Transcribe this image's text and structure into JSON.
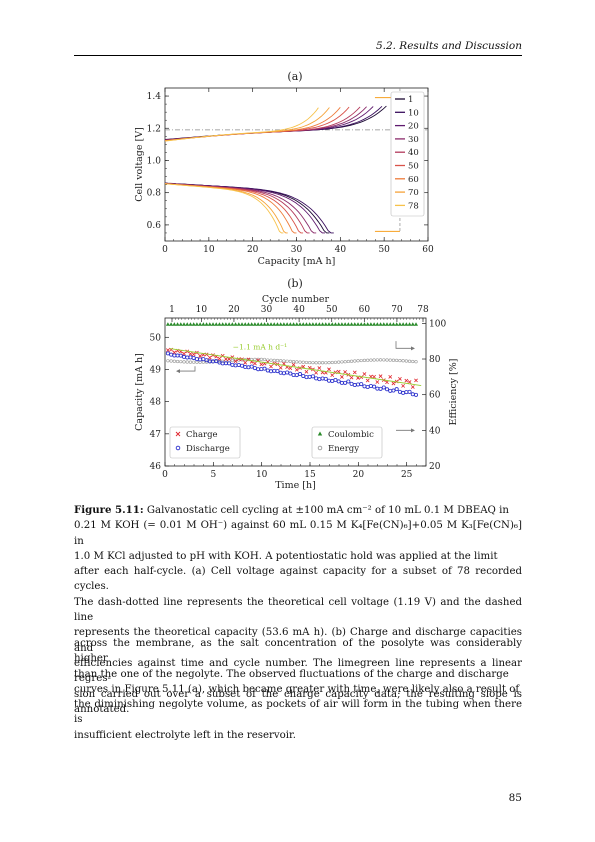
{
  "header": {
    "section": "5.2.  Results and Discussion"
  },
  "figure_a": {
    "panel_label": "(a)",
    "chart_data": {
      "type": "line",
      "xlabel": "Capacity [mA h]",
      "ylabel": "Cell voltage [V]",
      "xlim": [
        0,
        60
      ],
      "ylim": [
        0.5,
        1.45
      ],
      "x_ticks": [
        "0",
        "10",
        "20",
        "30",
        "40",
        "50",
        "60"
      ],
      "y_ticks": [
        "0.6",
        "0.8",
        "1.0",
        "1.2",
        "1.4"
      ],
      "theoretical_voltage": 1.19,
      "theoretical_capacity": 53.6,
      "legend_position": "top-right",
      "series": [
        {
          "name": "1",
          "color": "#1b0933",
          "charge_end": 50.5,
          "discharge_end": 37.5
        },
        {
          "name": "10",
          "color": "#3a0f5e",
          "charge_end": 49.5,
          "discharge_end": 38.5
        },
        {
          "name": "20",
          "color": "#5f1a6e",
          "charge_end": 47.5,
          "discharge_end": 36.5
        },
        {
          "name": "30",
          "color": "#8a2a6a",
          "charge_end": 46.0,
          "discharge_end": 34.5
        },
        {
          "name": "40",
          "color": "#b33a5c",
          "charge_end": 44.5,
          "discharge_end": 33.0
        },
        {
          "name": "50",
          "color": "#d9534a",
          "charge_end": 42.0,
          "discharge_end": 31.5
        },
        {
          "name": "60",
          "color": "#ee7b3a",
          "charge_end": 40.0,
          "discharge_end": 30.0
        },
        {
          "name": "70",
          "color": "#f6a33a",
          "charge_end": 37.5,
          "discharge_end": 28.0
        },
        {
          "name": "78",
          "color": "#f7c24a",
          "charge_end": 35.0,
          "discharge_end": 27.0
        }
      ]
    }
  },
  "figure_b": {
    "panel_label": "(b)",
    "chart_data": {
      "type": "scatter",
      "xlabel": "Time [h]",
      "ylabel": "Capacity [mA h]",
      "ylabel_right": "Efficiency [%]",
      "xlabel_top": "Cycle number",
      "xlim": [
        0,
        27
      ],
      "ylim": [
        46,
        50.6
      ],
      "ylim_right": [
        20,
        103
      ],
      "x_ticks": [
        "0",
        "5",
        "10",
        "15",
        "20",
        "25"
      ],
      "y_ticks": [
        "46",
        "47",
        "48",
        "49",
        "50"
      ],
      "y_ticks_right": [
        "20",
        "40",
        "60",
        "80",
        "100"
      ],
      "top_ticks": [
        "1",
        "10",
        "20",
        "30",
        "40",
        "50",
        "60",
        "70",
        "78"
      ],
      "slope_annotation": "−1.1 mA h d⁻¹",
      "legend": {
        "charge": "Charge",
        "discharge": "Discharge",
        "coulombic": "Coulombic",
        "energy": "Energy"
      },
      "charge_start": 49.6,
      "charge_end": 48.55,
      "discharge_start": 49.55,
      "discharge_end": 48.35,
      "coulombic_efficiency": 99.5,
      "energy_efficiency": 79.0,
      "colors": {
        "charge": "#e0262e",
        "discharge": "#2a2fcc",
        "coulombic": "#2a8a2a",
        "energy": "#999999",
        "fit": "#9acd32"
      }
    }
  },
  "caption": {
    "label": "Figure 5.11:",
    "lines": [
      "Galvanostatic cell cycling at ±100 mA cm⁻² of 10 mL 0.1 M DBEAQ in",
      "0.21 M KOH (= 0.01 M OH⁻) against 60 mL 0.15 M K₄[Fe(CN)₆]+0.05 M K₃[Fe(CN)₆] in",
      "1.0 M KCl adjusted to pH with KOH. A potentiostatic hold was applied at the limit",
      "after each half-cycle. (a) Cell voltage against capacity for a subset of 78 recorded cycles.",
      "The dash-dotted line represents the theoretical cell voltage (1.19 V) and the dashed line",
      "represents the theoretical capacity (53.6 mA h). (b) Charge and discharge capacities and",
      "efficiencies against time and cycle number. The limegreen line represents a linear regres-",
      "sion carried out over a subset of the charge capacity data; the resulting slope is annotated."
    ]
  },
  "body": {
    "lines": [
      "across the membrane, as the salt concentration of the posolyte was considerably higher",
      "than the one of the negolyte. The observed fluctuations of the charge and discharge",
      "curves in Figure 5.11 (a), which became greater with time, were likely also a result of",
      "the diminishing negolyte volume, as pockets of air will form in the tubing when there is",
      "insufficient electrolyte left in the reservoir."
    ]
  },
  "page_number": "85"
}
